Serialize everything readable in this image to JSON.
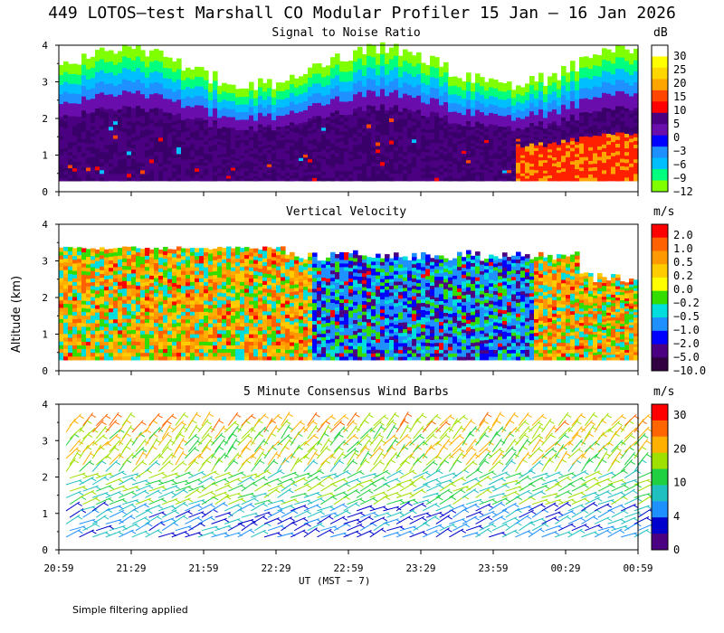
{
  "main_title": "449 LOTOS—test Marshall CO Modular Profiler 15 Jan — 16 Jan 2026",
  "y_axis_label": "Altitude (km)",
  "x_axis_label": "UT  (MST − 7)",
  "footnote": "Simple filtering applied",
  "time_ticks": [
    "20:59",
    "21:29",
    "21:59",
    "22:29",
    "22:59",
    "23:29",
    "23:59",
    "00:29",
    "00:59"
  ],
  "altitude_ticks": [
    "0",
    "1",
    "2",
    "3",
    "4"
  ],
  "panels": [
    {
      "title": "Signal to Noise Ratio",
      "unit": "dB",
      "colorbar_labels": [
        "30",
        "25",
        "20",
        "15",
        "10",
        "5",
        "0",
        "−3",
        "−6",
        "−9",
        "−12"
      ],
      "colorbar_colors": [
        "#ffffff",
        "#ffff00",
        "#ffd700",
        "#ffa500",
        "#ff4500",
        "#ff0000",
        "#4b0082",
        "#6a0dad",
        "#0000ff",
        "#1e90ff",
        "#00bfff",
        "#00ff7f",
        "#7fff00"
      ]
    },
    {
      "title": "Vertical Velocity",
      "unit": "m/s",
      "colorbar_labels": [
        "2.0",
        "1.0",
        "0.5",
        "0.2",
        "0.0",
        "−0.2",
        "−0.5",
        "−1.0",
        "−2.0",
        "−5.0",
        "−10.0"
      ],
      "colorbar_colors": [
        "#ff0000",
        "#ff6000",
        "#ff9900",
        "#ffcc00",
        "#ffff00",
        "#33dd00",
        "#00dddd",
        "#1e90ff",
        "#0000ff",
        "#4b0082",
        "#300040"
      ]
    },
    {
      "title": "5 Minute Consensus Wind Barbs",
      "unit": "m/s",
      "colorbar_labels": [
        "30",
        "20",
        "10",
        "4",
        "0"
      ],
      "colorbar_colors": [
        "#ff0000",
        "#ff6600",
        "#ffb000",
        "#a0e000",
        "#20d040",
        "#20c0c0",
        "#1e90ff",
        "#0000cc",
        "#4b0082"
      ]
    }
  ],
  "chart_data": [
    {
      "type": "heatmap",
      "title": "Signal to Noise Ratio",
      "variable": "SNR",
      "units": "dB",
      "x_range": [
        "20:59",
        "00:59"
      ],
      "ylim": [
        0,
        4
      ],
      "ylabel": "Altitude (km)",
      "color_scale": [
        -12,
        -9,
        -6,
        -3,
        0,
        5,
        10,
        15,
        20,
        25,
        30
      ],
      "description_values": {
        "lowest_gate_km": 0.3,
        "top_of_signal_km": [
          3.3,
          3.6
        ]
      }
    },
    {
      "type": "heatmap",
      "title": "Vertical Velocity",
      "variable": "Vertical velocity",
      "units": "m/s",
      "x_range": [
        "20:59",
        "00:59"
      ],
      "ylim": [
        0,
        4
      ],
      "color_scale": [
        -10.0,
        -5.0,
        -2.0,
        -1.0,
        -0.5,
        -0.2,
        0.0,
        0.2,
        0.5,
        1.0,
        2.0
      ]
    },
    {
      "type": "scatter",
      "title": "5 Minute Consensus Wind Barbs",
      "variable": "Wind barbs",
      "units": "m/s",
      "x_range": [
        "20:59",
        "00:59"
      ],
      "ylim": [
        0,
        4
      ],
      "color_scale": [
        0,
        4,
        10,
        20,
        30
      ]
    }
  ]
}
